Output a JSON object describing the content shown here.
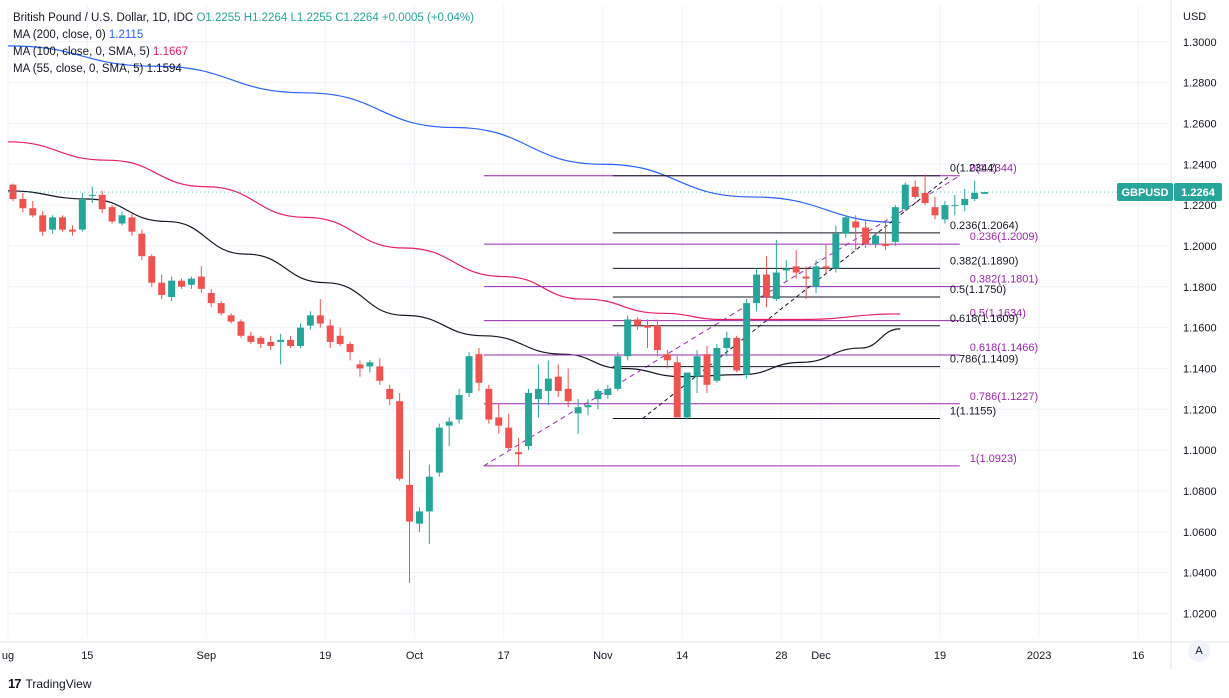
{
  "legend": {
    "symbol": "British Pound / U.S. Dollar, 1D, IDC",
    "open": "O1.2255",
    "high": "H1.2264",
    "low": "L1.2255",
    "close": "C1.2264",
    "change": "+0.0005 (+0.04%)",
    "ma200_label": "MA (200, close, 0)",
    "ma200_value": "1.2115",
    "ma100_label": "MA (100, close, 0, SMA, 5)",
    "ma100_value": "1.1667",
    "ma55_label": "MA (55, close, 0, SMA, 5)",
    "ma55_value": "1.1594"
  },
  "footer": {
    "brand": "TradingView",
    "logo": "17"
  },
  "axis_button": "A",
  "colors": {
    "up": "#26a69a",
    "down": "#ef5350",
    "ma200": "#2962ff",
    "ma100": "#e91e63",
    "ma55": "#131722",
    "fib": "#9c27b0"
  },
  "chart_data": {
    "type": "candlestick",
    "currency_label": "USD",
    "price_badge": {
      "symbol": "GBPUSD",
      "value": "1.2264",
      "price": 1.2264
    },
    "y_axis": {
      "ticks": [
        "1.3000",
        "1.2800",
        "1.2600",
        "1.2400",
        "1.2200",
        "1.2000",
        "1.1800",
        "1.1600",
        "1.1400",
        "1.1200",
        "1.1000",
        "1.0800",
        "1.0600",
        "1.0400",
        "1.0200"
      ],
      "range": [
        1.008,
        1.318
      ]
    },
    "x_axis": {
      "range": [
        0,
        117
      ],
      "ticks": [
        {
          "label": "ug",
          "idx": 0
        },
        {
          "label": "15",
          "idx": 8
        },
        {
          "label": "Sep",
          "idx": 20
        },
        {
          "label": "19",
          "idx": 32
        },
        {
          "label": "Oct",
          "idx": 41
        },
        {
          "label": "17",
          "idx": 50
        },
        {
          "label": "Nov",
          "idx": 60
        },
        {
          "label": "14",
          "idx": 68
        },
        {
          "label": "28",
          "idx": 78
        },
        {
          "label": "Dec",
          "idx": 82
        },
        {
          "label": "19",
          "idx": 94
        },
        {
          "label": "2023",
          "idx": 104
        },
        {
          "label": "16",
          "idx": 114
        }
      ]
    },
    "candles": [
      [
        1.23,
        1.2305,
        1.222,
        1.223
      ],
      [
        1.223,
        1.226,
        1.2165,
        1.2185
      ],
      [
        1.2185,
        1.222,
        1.214,
        1.215
      ],
      [
        1.215,
        1.217,
        1.205,
        1.207
      ],
      [
        1.208,
        1.215,
        1.206,
        1.214
      ],
      [
        1.214,
        1.215,
        1.207,
        1.208
      ],
      [
        1.208,
        1.21,
        1.205,
        1.207
      ],
      [
        1.208,
        1.226,
        1.207,
        1.223
      ],
      [
        1.225,
        1.229,
        1.221,
        1.225
      ],
      [
        1.225,
        1.227,
        1.216,
        1.218
      ],
      [
        1.219,
        1.22,
        1.211,
        1.212
      ],
      [
        1.211,
        1.217,
        1.21,
        1.215
      ],
      [
        1.214,
        1.216,
        1.205,
        1.207
      ],
      [
        1.206,
        1.208,
        1.193,
        1.195
      ],
      [
        1.195,
        1.196,
        1.18,
        1.182
      ],
      [
        1.182,
        1.186,
        1.174,
        1.176
      ],
      [
        1.175,
        1.185,
        1.173,
        1.183
      ],
      [
        1.183,
        1.184,
        1.179,
        1.18
      ],
      [
        1.181,
        1.185,
        1.179,
        1.184
      ],
      [
        1.185,
        1.19,
        1.177,
        1.179
      ],
      [
        1.177,
        1.179,
        1.17,
        1.172
      ],
      [
        1.172,
        1.173,
        1.166,
        1.167
      ],
      [
        1.166,
        1.167,
        1.162,
        1.163
      ],
      [
        1.163,
        1.164,
        1.155,
        1.156
      ],
      [
        1.156,
        1.158,
        1.152,
        1.153
      ],
      [
        1.155,
        1.156,
        1.15,
        1.152
      ],
      [
        1.153,
        1.156,
        1.149,
        1.151
      ],
      [
        1.153,
        1.157,
        1.142,
        1.154
      ],
      [
        1.154,
        1.156,
        1.15,
        1.151
      ],
      [
        1.151,
        1.162,
        1.15,
        1.16
      ],
      [
        1.161,
        1.168,
        1.159,
        1.166
      ],
      [
        1.166,
        1.174,
        1.16,
        1.162
      ],
      [
        1.161,
        1.164,
        1.15,
        1.153
      ],
      [
        1.156,
        1.16,
        1.151,
        1.152
      ],
      [
        1.152,
        1.153,
        1.144,
        1.148
      ],
      [
        1.142,
        1.144,
        1.136,
        1.14
      ],
      [
        1.141,
        1.144,
        1.138,
        1.143
      ],
      [
        1.141,
        1.145,
        1.132,
        1.134
      ],
      [
        1.13,
        1.132,
        1.122,
        1.125
      ],
      [
        1.124,
        1.128,
        1.085,
        1.086
      ],
      [
        1.083,
        1.1,
        1.035,
        1.065
      ],
      [
        1.064,
        1.072,
        1.06,
        1.07
      ],
      [
        1.07,
        1.093,
        1.054,
        1.087
      ],
      [
        1.089,
        1.113,
        1.087,
        1.111
      ],
      [
        1.112,
        1.116,
        1.102,
        1.114
      ],
      [
        1.115,
        1.13,
        1.113,
        1.127
      ],
      [
        1.128,
        1.148,
        1.126,
        1.146
      ],
      [
        1.147,
        1.15,
        1.129,
        1.133
      ],
      [
        1.13,
        1.132,
        1.113,
        1.115
      ],
      [
        1.116,
        1.123,
        1.108,
        1.112
      ],
      [
        1.111,
        1.118,
        1.1,
        1.101
      ],
      [
        1.099,
        1.106,
        1.092,
        1.098
      ],
      [
        1.102,
        1.13,
        1.1,
        1.128
      ],
      [
        1.125,
        1.142,
        1.116,
        1.13
      ],
      [
        1.129,
        1.144,
        1.122,
        1.135
      ],
      [
        1.136,
        1.142,
        1.126,
        1.129
      ],
      [
        1.13,
        1.14,
        1.121,
        1.124
      ],
      [
        1.118,
        1.125,
        1.108,
        1.121
      ],
      [
        1.121,
        1.125,
        1.117,
        1.122
      ],
      [
        1.125,
        1.13,
        1.12,
        1.129
      ],
      [
        1.127,
        1.132,
        1.125,
        1.13
      ],
      [
        1.13,
        1.148,
        1.129,
        1.146
      ],
      [
        1.146,
        1.166,
        1.144,
        1.164
      ],
      [
        1.164,
        1.165,
        1.159,
        1.161
      ],
      [
        1.161,
        1.164,
        1.15,
        1.16
      ],
      [
        1.161,
        1.164,
        1.146,
        1.149
      ],
      [
        1.147,
        1.149,
        1.14,
        1.144
      ],
      [
        1.143,
        1.146,
        1.118,
        1.116
      ],
      [
        1.116,
        1.138,
        1.115,
        1.138
      ],
      [
        1.136,
        1.149,
        1.128,
        1.146
      ],
      [
        1.147,
        1.151,
        1.128,
        1.132
      ],
      [
        1.134,
        1.152,
        1.133,
        1.15
      ],
      [
        1.15,
        1.158,
        1.146,
        1.155
      ],
      [
        1.155,
        1.156,
        1.138,
        1.139
      ],
      [
        1.137,
        1.174,
        1.135,
        1.172
      ],
      [
        1.172,
        1.189,
        1.168,
        1.186
      ],
      [
        1.186,
        1.195,
        1.17,
        1.175
      ],
      [
        1.174,
        1.203,
        1.173,
        1.187
      ],
      [
        1.188,
        1.193,
        1.183,
        1.189
      ],
      [
        1.19,
        1.198,
        1.184,
        1.187
      ],
      [
        1.185,
        1.19,
        1.174,
        1.184
      ],
      [
        1.18,
        1.193,
        1.177,
        1.19
      ],
      [
        1.19,
        1.201,
        1.186,
        1.189
      ],
      [
        1.189,
        1.21,
        1.187,
        1.206
      ],
      [
        1.206,
        1.215,
        1.204,
        1.214
      ],
      [
        1.212,
        1.215,
        1.198,
        1.209
      ],
      [
        1.209,
        1.213,
        1.199,
        1.201
      ],
      [
        1.201,
        1.206,
        1.199,
        1.205
      ],
      [
        1.201,
        1.212,
        1.198,
        1.2
      ],
      [
        1.202,
        1.22,
        1.2,
        1.219
      ],
      [
        1.218,
        1.231,
        1.217,
        1.23
      ],
      [
        1.229,
        1.232,
        1.223,
        1.224
      ],
      [
        1.226,
        1.235,
        1.22,
        1.221
      ],
      [
        1.219,
        1.224,
        1.213,
        1.215
      ],
      [
        1.213,
        1.222,
        1.211,
        1.22
      ],
      [
        1.22,
        1.225,
        1.215,
        1.22
      ],
      [
        1.22,
        1.228,
        1.217,
        1.223
      ],
      [
        1.223,
        1.232,
        1.222,
        1.226
      ],
      [
        1.2255,
        1.2264,
        1.2255,
        1.2264
      ]
    ],
    "candle_start_idx": 0,
    "ma200": [
      [
        0,
        1.298
      ],
      [
        15,
        1.288
      ],
      [
        30,
        1.275
      ],
      [
        45,
        1.258
      ],
      [
        60,
        1.24
      ],
      [
        75,
        1.224
      ],
      [
        90,
        1.2115
      ]
    ],
    "ma100": [
      [
        0,
        1.251
      ],
      [
        10,
        1.242
      ],
      [
        20,
        1.229
      ],
      [
        30,
        1.214
      ],
      [
        40,
        1.199
      ],
      [
        50,
        1.185
      ],
      [
        58,
        1.174
      ],
      [
        66,
        1.167
      ],
      [
        72,
        1.164
      ],
      [
        80,
        1.164
      ],
      [
        90,
        1.1667
      ]
    ],
    "ma55": [
      [
        0,
        1.227
      ],
      [
        8,
        1.223
      ],
      [
        16,
        1.212
      ],
      [
        24,
        1.196
      ],
      [
        32,
        1.182
      ],
      [
        40,
        1.166
      ],
      [
        48,
        1.156
      ],
      [
        56,
        1.147
      ],
      [
        62,
        1.14
      ],
      [
        68,
        1.136
      ],
      [
        74,
        1.137
      ],
      [
        80,
        1.143
      ],
      [
        86,
        1.15
      ],
      [
        90,
        1.1594
      ]
    ],
    "fib_black": {
      "x_start_idx": 61,
      "x_end_idx": 94,
      "label_idx": 95,
      "levels": [
        {
          "label": "0(1.2344)",
          "price": 1.2344
        },
        {
          "label": "0.236(1.2064)",
          "price": 1.2064
        },
        {
          "label": "0.382(1.1890)",
          "price": 1.189
        },
        {
          "label": "0.5(1.1750)",
          "price": 1.175
        },
        {
          "label": "0.618(1.1609)",
          "price": 1.1609
        },
        {
          "label": "0.786(1.1409)",
          "price": 1.1409
        },
        {
          "label": "1(1.1155)",
          "price": 1.1155
        }
      ],
      "trend": {
        "from_idx": 64,
        "from_price": 1.1155,
        "to_idx": 95,
        "to_price": 1.2344
      }
    },
    "fib_purple": {
      "x_start_idx": 48,
      "x_end_idx": 96,
      "label_idx": 97,
      "levels": [
        {
          "label": "0(1.2344)",
          "price": 1.2344
        },
        {
          "label": "0.236(1.2009)",
          "price": 1.2009
        },
        {
          "label": "0.382(1.1801)",
          "price": 1.1801
        },
        {
          "label": "0.5(1.1634)",
          "price": 1.1634
        },
        {
          "label": "0.618(1.1466)",
          "price": 1.1466
        },
        {
          "label": "0.786(1.1227)",
          "price": 1.1227
        },
        {
          "label": "1(1.0923)",
          "price": 1.0923
        }
      ],
      "trend": {
        "from_idx": 48,
        "from_price": 1.0923,
        "to_idx": 96,
        "to_price": 1.2344
      }
    }
  }
}
